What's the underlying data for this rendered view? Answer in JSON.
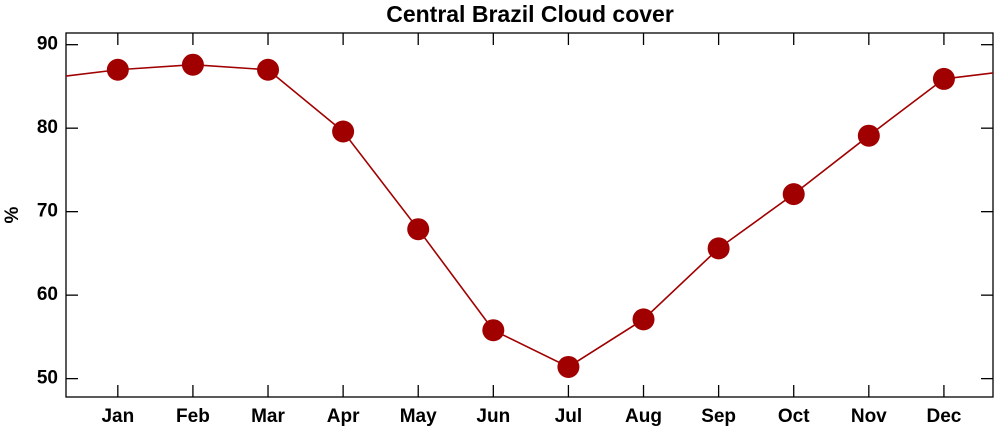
{
  "chart_data": {
    "type": "line",
    "title": "Central Brazil Cloud cover",
    "ylabel": "%",
    "categories": [
      "Jan",
      "Feb",
      "Mar",
      "Apr",
      "May",
      "Jun",
      "Jul",
      "Aug",
      "Sep",
      "Oct",
      "Nov",
      "Dec"
    ],
    "values": [
      87.0,
      87.6,
      87.0,
      79.6,
      67.9,
      55.8,
      51.4,
      57.1,
      65.6,
      72.1,
      79.1,
      85.9
    ],
    "color": "#a00000",
    "ylim": [
      47.8,
      91.4
    ],
    "yticks": [
      50,
      60,
      70,
      80,
      90
    ]
  }
}
